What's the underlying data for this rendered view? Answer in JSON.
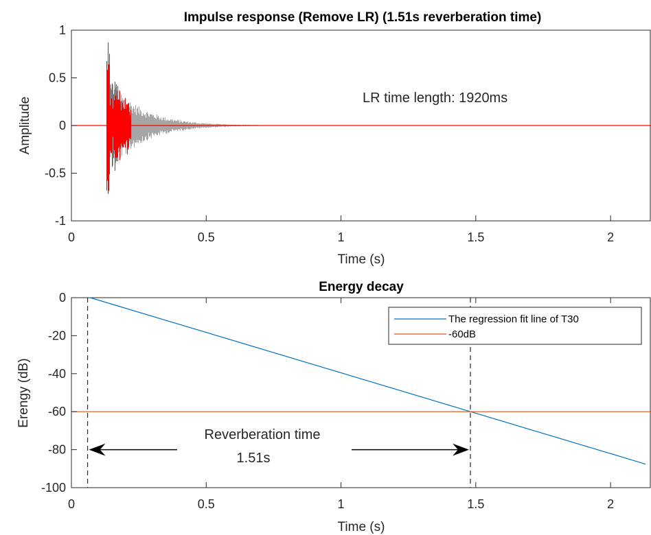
{
  "chart_data": [
    {
      "type": "line",
      "title": "Impulse response (Remove LR) (1.51s reverberation time)",
      "xlabel": "Time (s)",
      "ylabel": "Amplitude",
      "xlim": [
        0,
        2.15
      ],
      "ylim": [
        -1,
        1
      ],
      "xticks": [
        0,
        0.5,
        1,
        1.5,
        2
      ],
      "xtick_labels": [
        "0",
        "0.5",
        "1",
        "1.5",
        "2"
      ],
      "yticks": [
        1,
        0.5,
        0,
        -0.5,
        -1
      ],
      "ytick_labels": [
        "1",
        "0.5",
        "0",
        "-0.5",
        "-1"
      ],
      "grid": false,
      "annotation": "LR time length: 1920ms",
      "series": [
        {
          "color": "#a6a6a6",
          "description_values": {
            "onset_s": 0.13,
            "envelope_peak": 0.55,
            "decay_end_s": 0.85
          }
        },
        {
          "color": "#ff0000",
          "description_values": {
            "start_s": 0.13,
            "end_s": 0.22,
            "peak": 1.0,
            "tail_value": 0
          }
        }
      ]
    },
    {
      "type": "line",
      "title": "Energy decay",
      "xlabel": "Time (s)",
      "ylabel": "Erengy (dB)",
      "xlim": [
        0,
        2.15
      ],
      "ylim": [
        -100,
        0
      ],
      "xticks": [
        0,
        0.5,
        1,
        1.5,
        2
      ],
      "xtick_labels": [
        "0",
        "0.5",
        "1",
        "1.5",
        "2"
      ],
      "yticks": [
        0,
        -20,
        -40,
        -60,
        -80,
        -100
      ],
      "ytick_labels": [
        "0",
        "-20",
        "-40",
        "-60",
        "-80",
        "-100"
      ],
      "grid": false,
      "legend_position": "top-right",
      "series": [
        {
          "name": "The regression fit line of T30",
          "color": "#0072bd",
          "x": [
            0.07,
            2.13
          ],
          "y": [
            0,
            -87.6
          ]
        },
        {
          "name": "-60dB",
          "color": "#d95319",
          "x": [
            0,
            2.15
          ],
          "y": [
            -60,
            -60
          ]
        }
      ],
      "vlines": [
        0.06,
        1.48
      ],
      "annotation_lines": [
        "Reverberation time",
        "1.51s"
      ]
    }
  ]
}
